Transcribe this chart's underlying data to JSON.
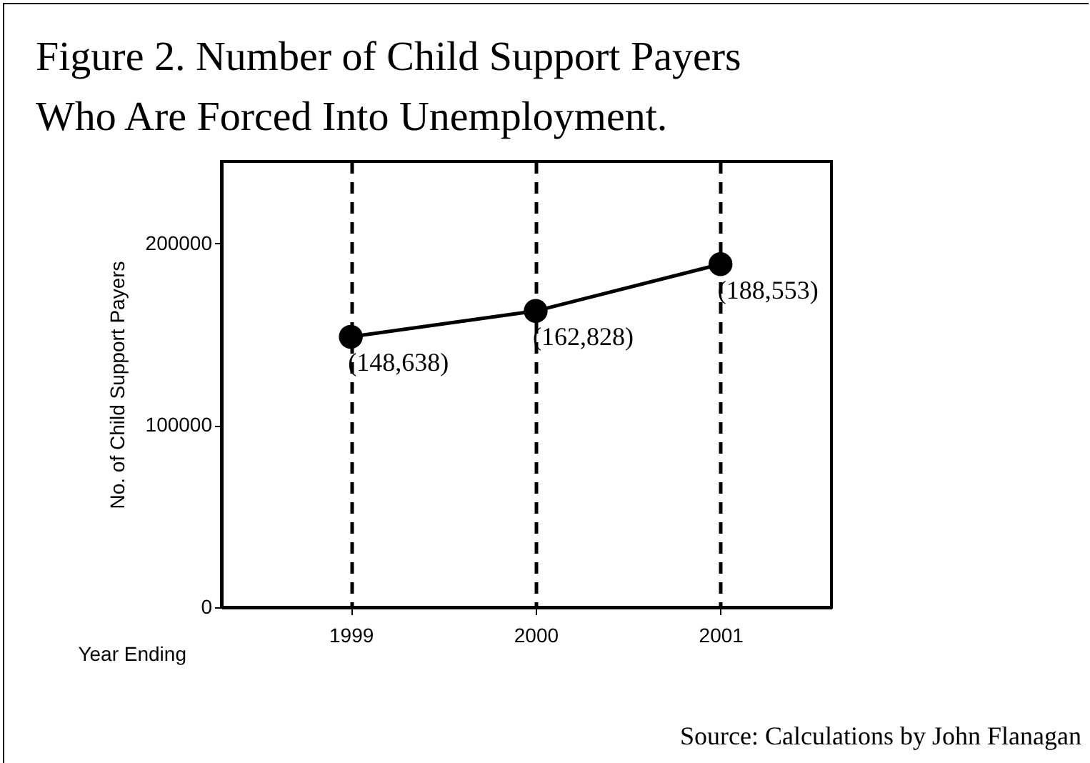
{
  "chart_data": {
    "type": "line",
    "title": "Figure 2. Number of Child Support Payers Who Are Forced Into Unemployment.",
    "xlabel": "Year Ending",
    "ylabel": "No. of Child Support Payers",
    "x": [
      1999,
      2000,
      2001
    ],
    "series": [
      {
        "color": "#000000",
        "values": [
          148638,
          162828,
          188553
        ],
        "value_labels": [
          "(148,638)",
          "(162,828)",
          "(188,553)"
        ]
      }
    ],
    "xlim": [
      1998.3,
      2001.6
    ],
    "xticks": [
      1999,
      2000,
      2001
    ],
    "ylim": [
      0,
      245000
    ],
    "yticks": [
      0,
      100000,
      200000
    ],
    "grid": "x",
    "marker": "circle",
    "line_style": "solid",
    "annotations": [
      "Source: Calculations by John Flanagan"
    ]
  }
}
